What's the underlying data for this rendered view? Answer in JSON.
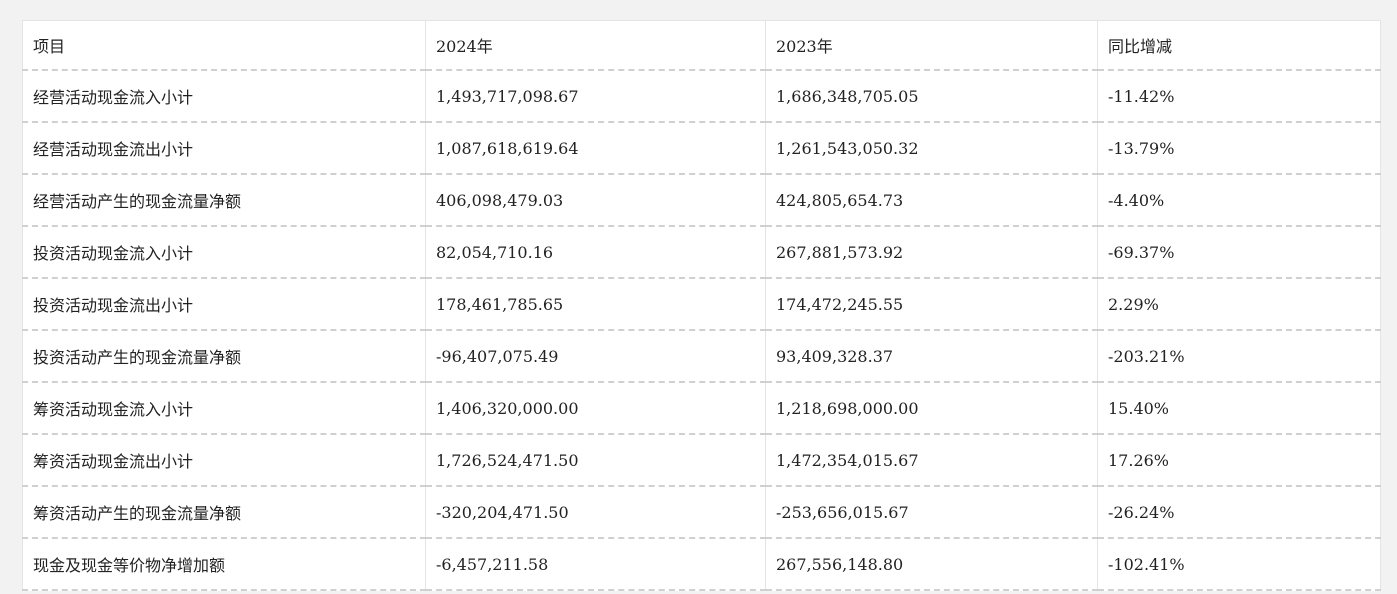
{
  "table": {
    "headers": [
      "项目",
      "2024年",
      "2023年",
      "同比增减"
    ],
    "rows": [
      [
        "经营活动现金流入小计",
        "1,493,717,098.67",
        "1,686,348,705.05",
        "-11.42%"
      ],
      [
        "经营活动现金流出小计",
        "1,087,618,619.64",
        "1,261,543,050.32",
        "-13.79%"
      ],
      [
        "经营活动产生的现金流量净额",
        "406,098,479.03",
        "424,805,654.73",
        "-4.40%"
      ],
      [
        "投资活动现金流入小计",
        "82,054,710.16",
        "267,881,573.92",
        "-69.37%"
      ],
      [
        "投资活动现金流出小计",
        "178,461,785.65",
        "174,472,245.55",
        "2.29%"
      ],
      [
        "投资活动产生的现金流量净额",
        "-96,407,075.49",
        "93,409,328.37",
        "-203.21%"
      ],
      [
        "筹资活动现金流入小计",
        "1,406,320,000.00",
        "1,218,698,000.00",
        "15.40%"
      ],
      [
        "筹资活动现金流出小计",
        "1,726,524,471.50",
        "1,472,354,015.67",
        "17.26%"
      ],
      [
        "筹资活动产生的现金流量净额",
        "-320,204,471.50",
        "-253,656,015.67",
        "-26.24%"
      ],
      [
        "现金及现金等价物净增加额",
        "-6,457,211.58",
        "267,556,148.80",
        "-102.41%"
      ]
    ]
  }
}
